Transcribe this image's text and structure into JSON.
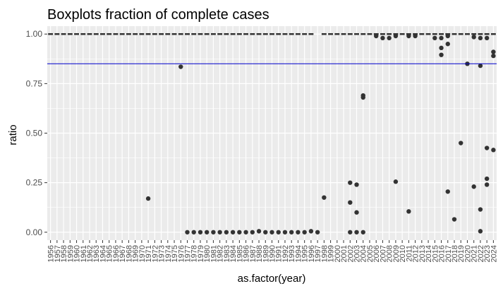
{
  "chart_data": {
    "type": "boxplot",
    "title": "Boxplots fraction of complete cases",
    "xlabel": "as.factor(year)",
    "ylabel": "ratio",
    "ylim": [
      -0.04,
      1.04
    ],
    "y_ticks": [
      0.0,
      0.25,
      0.5,
      0.75,
      1.0
    ],
    "y_tick_labels": [
      "0.00",
      "0.25",
      "0.50",
      "0.75",
      "1.00"
    ],
    "reference_line": {
      "y": 0.85,
      "color": "#0000cc"
    },
    "grid": true,
    "colors": {
      "panel": "#ebebeb",
      "grid": "#ffffff",
      "points": "#333333",
      "box": "#333333"
    },
    "categories": [
      "1956",
      "1957",
      "1958",
      "1959",
      "1960",
      "1961",
      "1962",
      "1963",
      "1964",
      "1965",
      "1966",
      "1967",
      "1968",
      "1969",
      "1970",
      "1971",
      "1972",
      "1973",
      "1974",
      "1975",
      "1976",
      "1977",
      "1978",
      "1979",
      "1980",
      "1981",
      "1982",
      "1983",
      "1984",
      "1985",
      "1986",
      "1987",
      "1988",
      "1989",
      "1990",
      "1991",
      "1992",
      "1993",
      "1994",
      "1995",
      "1996",
      "1997",
      "1998",
      "1999",
      "2000",
      "2001",
      "2002",
      "2003",
      "2004",
      "2005",
      "2006",
      "2007",
      "2008",
      "2009",
      "2010",
      "2011",
      "2012",
      "2013",
      "2014",
      "2015",
      "2016",
      "2017",
      "2018",
      "2019",
      "2020",
      "2021",
      "2022",
      "2023",
      "2024"
    ],
    "boxes_at_one": [
      "1956",
      "1957",
      "1958",
      "1959",
      "1960",
      "1961",
      "1962",
      "1963",
      "1964",
      "1965",
      "1966",
      "1967",
      "1968",
      "1969",
      "1970",
      "1971",
      "1972",
      "1973",
      "1974",
      "1975",
      "1976",
      "1977",
      "1978",
      "1979",
      "1980",
      "1981",
      "1982",
      "1983",
      "1984",
      "1985",
      "1986",
      "1987",
      "1988",
      "1989",
      "1990",
      "1991",
      "1992",
      "1993",
      "1994",
      "1995",
      "1996",
      "1998",
      "1999",
      "2000",
      "2001",
      "2002",
      "2003",
      "2004",
      "2005",
      "2006",
      "2007",
      "2008",
      "2009",
      "2010",
      "2011",
      "2012",
      "2013",
      "2014",
      "2015",
      "2016",
      "2017",
      "2018",
      "2019",
      "2020",
      "2021",
      "2022",
      "2023",
      "2024"
    ],
    "outliers": [
      {
        "x": "1971",
        "y": 0.17
      },
      {
        "x": "1976",
        "y": 0.835
      },
      {
        "x": "1977",
        "y": 0.0
      },
      {
        "x": "1978",
        "y": 0.0
      },
      {
        "x": "1979",
        "y": 0.0
      },
      {
        "x": "1980",
        "y": 0.0
      },
      {
        "x": "1981",
        "y": 0.0
      },
      {
        "x": "1982",
        "y": 0.0
      },
      {
        "x": "1983",
        "y": 0.0
      },
      {
        "x": "1984",
        "y": 0.0
      },
      {
        "x": "1985",
        "y": 0.0
      },
      {
        "x": "1986",
        "y": 0.0
      },
      {
        "x": "1987",
        "y": 0.0
      },
      {
        "x": "1988",
        "y": 0.005
      },
      {
        "x": "1989",
        "y": 0.0
      },
      {
        "x": "1990",
        "y": 0.0
      },
      {
        "x": "1991",
        "y": 0.0
      },
      {
        "x": "1992",
        "y": 0.0
      },
      {
        "x": "1993",
        "y": 0.0
      },
      {
        "x": "1994",
        "y": 0.0
      },
      {
        "x": "1995",
        "y": 0.0
      },
      {
        "x": "1996",
        "y": 0.005
      },
      {
        "x": "1997",
        "y": 0.0
      },
      {
        "x": "1998",
        "y": 0.175
      },
      {
        "x": "2002",
        "y": 0.25
      },
      {
        "x": "2002",
        "y": 0.15
      },
      {
        "x": "2002",
        "y": 0.0
      },
      {
        "x": "2003",
        "y": 0.24
      },
      {
        "x": "2003",
        "y": 0.1
      },
      {
        "x": "2003",
        "y": 0.0
      },
      {
        "x": "2004",
        "y": 0.69
      },
      {
        "x": "2004",
        "y": 0.68
      },
      {
        "x": "2004",
        "y": 0.0
      },
      {
        "x": "2006",
        "y": 0.99
      },
      {
        "x": "2007",
        "y": 0.98
      },
      {
        "x": "2008",
        "y": 0.98
      },
      {
        "x": "2009",
        "y": 0.255
      },
      {
        "x": "2009",
        "y": 0.99
      },
      {
        "x": "2011",
        "y": 0.105
      },
      {
        "x": "2011",
        "y": 0.99
      },
      {
        "x": "2012",
        "y": 0.99
      },
      {
        "x": "2015",
        "y": 0.98
      },
      {
        "x": "2016",
        "y": 0.93
      },
      {
        "x": "2016",
        "y": 0.895
      },
      {
        "x": "2016",
        "y": 0.98
      },
      {
        "x": "2017",
        "y": 0.95
      },
      {
        "x": "2017",
        "y": 0.205
      },
      {
        "x": "2017",
        "y": 0.99
      },
      {
        "x": "2018",
        "y": 0.065
      },
      {
        "x": "2019",
        "y": 0.45
      },
      {
        "x": "2020",
        "y": 0.85
      },
      {
        "x": "2021",
        "y": 0.23
      },
      {
        "x": "2021",
        "y": 0.985
      },
      {
        "x": "2022",
        "y": 0.84
      },
      {
        "x": "2022",
        "y": 0.115
      },
      {
        "x": "2022",
        "y": 0.005
      },
      {
        "x": "2022",
        "y": 0.98
      },
      {
        "x": "2023",
        "y": 0.425
      },
      {
        "x": "2023",
        "y": 0.27
      },
      {
        "x": "2023",
        "y": 0.24
      },
      {
        "x": "2023",
        "y": 0.98
      },
      {
        "x": "2024",
        "y": 0.91
      },
      {
        "x": "2024",
        "y": 0.89
      },
      {
        "x": "2024",
        "y": 0.415
      }
    ]
  }
}
